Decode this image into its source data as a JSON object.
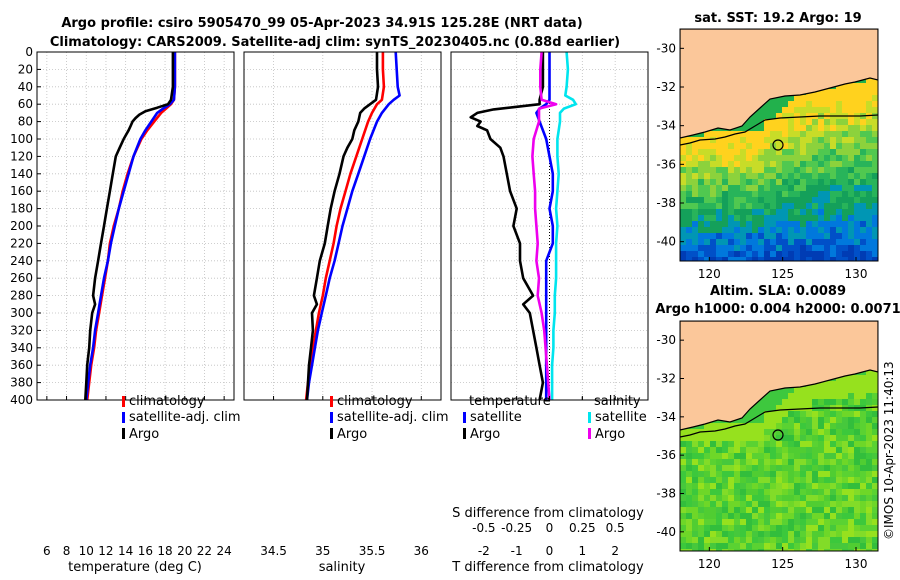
{
  "title": {
    "line1": "Argo profile: csiro 5905470_99 05-Apr-2023 34.91S 125.28E (NRT data)",
    "line2": "Climatology: CARS2009. Satellite-adj clim: synTS_20230405.nc (0.88d earlier)"
  },
  "credit": "©IMOS 10-Apr-2023 11:40:13",
  "colors": {
    "climatology": "#ff0000",
    "satellite": "#0000ff",
    "argo": "#000000",
    "salinity_satellite": "#00e5ee",
    "salinity_argo": "#ee00ee",
    "land": "#fbc79a",
    "grid": "#bfbfbf"
  },
  "depth_axis": {
    "ylim": [
      0,
      400
    ],
    "ticks": [
      "0",
      "20",
      "40",
      "60",
      "80",
      "100",
      "120",
      "140",
      "160",
      "180",
      "200",
      "220",
      "240",
      "260",
      "280",
      "300",
      "320",
      "340",
      "360",
      "380",
      "400"
    ]
  },
  "chart_data": [
    {
      "id": "temperature",
      "type": "line",
      "xlabel": "temperature (deg C)",
      "ylabel": "depth",
      "xlim": [
        5,
        25
      ],
      "ylim": [
        0,
        400
      ],
      "xticks": [
        6,
        8,
        10,
        12,
        14,
        16,
        18,
        20,
        22,
        24
      ],
      "xtick_labels": [
        "6",
        "8",
        "10",
        "12",
        "14",
        "16",
        "18",
        "20",
        "22",
        "24"
      ],
      "grid": true,
      "legend": [
        "climatology",
        "satellite-adj. clim",
        "Argo"
      ],
      "series": [
        {
          "name": "climatology",
          "color": "#ff0000",
          "depth": [
            0,
            20,
            40,
            55,
            60,
            65,
            70,
            80,
            90,
            100,
            120,
            140,
            160,
            180,
            200,
            220,
            240,
            260,
            280,
            300,
            320,
            340,
            360,
            380,
            400
          ],
          "values": [
            19.0,
            19.0,
            19.0,
            18.9,
            18.6,
            18.1,
            17.6,
            16.9,
            16.2,
            15.6,
            14.8,
            14.2,
            13.7,
            13.3,
            12.8,
            12.4,
            12.2,
            11.9,
            11.6,
            11.3,
            11.0,
            10.8,
            10.5,
            10.3,
            10.1
          ]
        },
        {
          "name": "satellite-adj. clim",
          "color": "#0000ff",
          "depth": [
            0,
            20,
            40,
            55,
            60,
            65,
            70,
            80,
            90,
            100,
            120,
            140,
            160,
            180,
            200,
            220,
            240,
            260,
            280,
            300,
            320,
            340,
            360,
            380,
            400
          ],
          "values": [
            19.0,
            19.0,
            19.0,
            18.9,
            18.5,
            17.8,
            17.2,
            16.6,
            16.0,
            15.5,
            14.8,
            14.3,
            13.8,
            13.3,
            12.9,
            12.5,
            12.2,
            11.8,
            11.5,
            11.2,
            10.9,
            10.7,
            10.4,
            10.2,
            10.0
          ]
        },
        {
          "name": "Argo",
          "color": "#000000",
          "depth": [
            0,
            20,
            40,
            55,
            60,
            64,
            68,
            72,
            76,
            80,
            85,
            90,
            100,
            110,
            120,
            140,
            160,
            180,
            200,
            220,
            240,
            260,
            280,
            290,
            300,
            320,
            340,
            360,
            380,
            400
          ],
          "values": [
            18.8,
            18.8,
            18.8,
            18.6,
            18.3,
            17.2,
            16.0,
            15.4,
            15.0,
            14.7,
            14.5,
            14.3,
            13.8,
            13.4,
            13.0,
            12.7,
            12.4,
            12.1,
            11.8,
            11.5,
            11.2,
            10.9,
            10.7,
            10.9,
            10.6,
            10.4,
            10.3,
            10.1,
            10.0,
            9.9
          ]
        }
      ]
    },
    {
      "id": "salinity",
      "type": "line",
      "xlabel": "salinity",
      "ylabel": "depth",
      "xlim": [
        34.2,
        36.2
      ],
      "ylim": [
        0,
        400
      ],
      "xticks": [
        34.5,
        35,
        35.5,
        36
      ],
      "xtick_labels": [
        "34.5",
        "35",
        "35.5",
        "36"
      ],
      "grid": true,
      "legend": [
        "climatology",
        "satellite-adj. clim",
        "Argo"
      ],
      "series": [
        {
          "name": "climatology",
          "color": "#ff0000",
          "depth": [
            0,
            20,
            40,
            55,
            60,
            70,
            80,
            100,
            120,
            140,
            160,
            180,
            200,
            220,
            240,
            260,
            280,
            300,
            320,
            340,
            360,
            380,
            400
          ],
          "values": [
            35.61,
            35.61,
            35.62,
            35.6,
            35.55,
            35.5,
            35.46,
            35.4,
            35.34,
            35.28,
            35.23,
            35.18,
            35.14,
            35.11,
            35.07,
            35.03,
            35.0,
            34.96,
            34.93,
            34.9,
            34.88,
            34.85,
            34.83
          ]
        },
        {
          "name": "satellite-adj. clim",
          "color": "#0000ff",
          "depth": [
            0,
            20,
            40,
            50,
            55,
            60,
            70,
            80,
            100,
            120,
            140,
            160,
            180,
            200,
            220,
            240,
            260,
            280,
            300,
            320,
            340,
            360,
            380,
            400
          ],
          "values": [
            35.74,
            35.75,
            35.76,
            35.78,
            35.72,
            35.67,
            35.6,
            35.55,
            35.48,
            35.42,
            35.36,
            35.3,
            35.25,
            35.2,
            35.16,
            35.12,
            35.07,
            35.03,
            34.99,
            34.95,
            34.92,
            34.89,
            34.86,
            34.84
          ]
        },
        {
          "name": "Argo",
          "color": "#000000",
          "depth": [
            0,
            20,
            40,
            55,
            60,
            65,
            70,
            80,
            90,
            100,
            110,
            120,
            140,
            160,
            180,
            200,
            220,
            240,
            260,
            280,
            290,
            300,
            320,
            340,
            360,
            380,
            400
          ],
          "values": [
            35.55,
            35.55,
            35.56,
            35.54,
            35.48,
            35.42,
            35.38,
            35.36,
            35.32,
            35.3,
            35.25,
            35.21,
            35.17,
            35.12,
            35.08,
            35.05,
            35.02,
            34.97,
            34.94,
            34.91,
            34.94,
            34.89,
            34.9,
            34.88,
            34.86,
            34.85,
            34.84
          ]
        }
      ]
    },
    {
      "id": "difference",
      "type": "line",
      "xlabel": "T difference from climatology",
      "xlabel2": "S difference from climatology",
      "ylabel": "depth",
      "xlim": [
        -3,
        3
      ],
      "x2lim": [
        -0.75,
        0.75
      ],
      "ylim": [
        0,
        400
      ],
      "xticks": [
        -2,
        -1,
        0,
        1,
        2
      ],
      "xtick_labels": [
        "-2",
        "-1",
        "0",
        "1",
        "2"
      ],
      "x2ticks": [
        -0.5,
        -0.25,
        0,
        0.25,
        0.5
      ],
      "x2tick_labels": [
        "-0.5",
        "-0.25",
        "0",
        "0.25",
        "0.5"
      ],
      "grid": true,
      "legend_groups": {
        "temperature": {
          "title": "temperature",
          "items": [
            "satellite",
            "Argo"
          ]
        },
        "salinity": {
          "title": "salinity",
          "items": [
            "satellite",
            "Argo"
          ]
        }
      },
      "series": [
        {
          "name": "temperature satellite",
          "axis": "T",
          "color": "#0000ff",
          "depth": [
            0,
            20,
            40,
            55,
            60,
            65,
            70,
            80,
            100,
            120,
            140,
            160,
            180,
            200,
            220,
            240,
            260,
            280,
            300,
            320,
            340,
            360,
            380,
            400
          ],
          "values": [
            0.0,
            0.0,
            0.0,
            0.0,
            -0.1,
            -0.3,
            -0.4,
            -0.3,
            -0.1,
            0.0,
            0.1,
            0.1,
            0.0,
            0.1,
            0.1,
            -0.1,
            -0.1,
            -0.1,
            -0.1,
            -0.1,
            -0.1,
            -0.1,
            -0.1,
            -0.1
          ]
        },
        {
          "name": "temperature Argo",
          "axis": "T",
          "color": "#000000",
          "depth": [
            0,
            20,
            40,
            55,
            60,
            63,
            66,
            70,
            75,
            80,
            85,
            90,
            100,
            110,
            120,
            140,
            160,
            180,
            200,
            220,
            240,
            260,
            280,
            290,
            300,
            320,
            340,
            360,
            380,
            400
          ],
          "values": [
            -0.2,
            -0.2,
            -0.2,
            -0.3,
            -0.3,
            -1.0,
            -1.7,
            -2.2,
            -2.4,
            -2.1,
            -2.2,
            -1.9,
            -1.8,
            -1.5,
            -1.4,
            -1.3,
            -1.2,
            -1.0,
            -1.1,
            -0.9,
            -0.9,
            -0.8,
            -0.5,
            -0.8,
            -0.6,
            -0.5,
            -0.4,
            -0.3,
            -0.2,
            -0.3
          ]
        },
        {
          "name": "salinity satellite",
          "axis": "S",
          "color": "#00e5ee",
          "depth": [
            0,
            20,
            40,
            50,
            55,
            60,
            65,
            70,
            80,
            100,
            120,
            140,
            160,
            180,
            200,
            220,
            240,
            260,
            280,
            300,
            320,
            340,
            360,
            380,
            400
          ],
          "values": [
            0.13,
            0.14,
            0.13,
            0.12,
            0.18,
            0.2,
            0.11,
            0.08,
            0.08,
            0.06,
            0.06,
            0.07,
            0.06,
            0.05,
            0.06,
            0.05,
            0.05,
            0.05,
            0.04,
            0.04,
            0.03,
            0.03,
            0.02,
            0.02,
            0.02
          ]
        },
        {
          "name": "salinity Argo",
          "axis": "S",
          "color": "#ee00ee",
          "depth": [
            0,
            20,
            40,
            55,
            60,
            65,
            70,
            80,
            100,
            120,
            140,
            160,
            180,
            200,
            220,
            240,
            260,
            280,
            300,
            320,
            340,
            360,
            380,
            400
          ],
          "values": [
            -0.06,
            -0.07,
            -0.07,
            -0.06,
            0.05,
            -0.08,
            -0.08,
            -0.08,
            -0.12,
            -0.13,
            -0.12,
            -0.11,
            -0.11,
            -0.1,
            -0.09,
            -0.1,
            -0.08,
            -0.09,
            -0.06,
            -0.04,
            -0.03,
            -0.02,
            -0.01,
            0.0
          ]
        }
      ]
    }
  ],
  "maps": [
    {
      "id": "sst",
      "title": "sat. SST: 19.2 Argo: 19",
      "lat_ticks": [
        "-30",
        "-32",
        "-34",
        "-36",
        "-38",
        "-40"
      ],
      "lon_ticks": [
        "120",
        "125",
        "130"
      ],
      "argo_position": {
        "lon": 125.28,
        "lat": -34.91
      }
    },
    {
      "id": "sla",
      "title_line1": "Altim. SLA: 0.0089",
      "title_line2": "Argo h1000: 0.004 h2000: 0.0071",
      "lat_ticks": [
        "-30",
        "-32",
        "-34",
        "-36",
        "-38",
        "-40"
      ],
      "lon_ticks": [
        "120",
        "125",
        "130"
      ],
      "argo_position": {
        "lon": 125.28,
        "lat": -34.91
      }
    }
  ]
}
